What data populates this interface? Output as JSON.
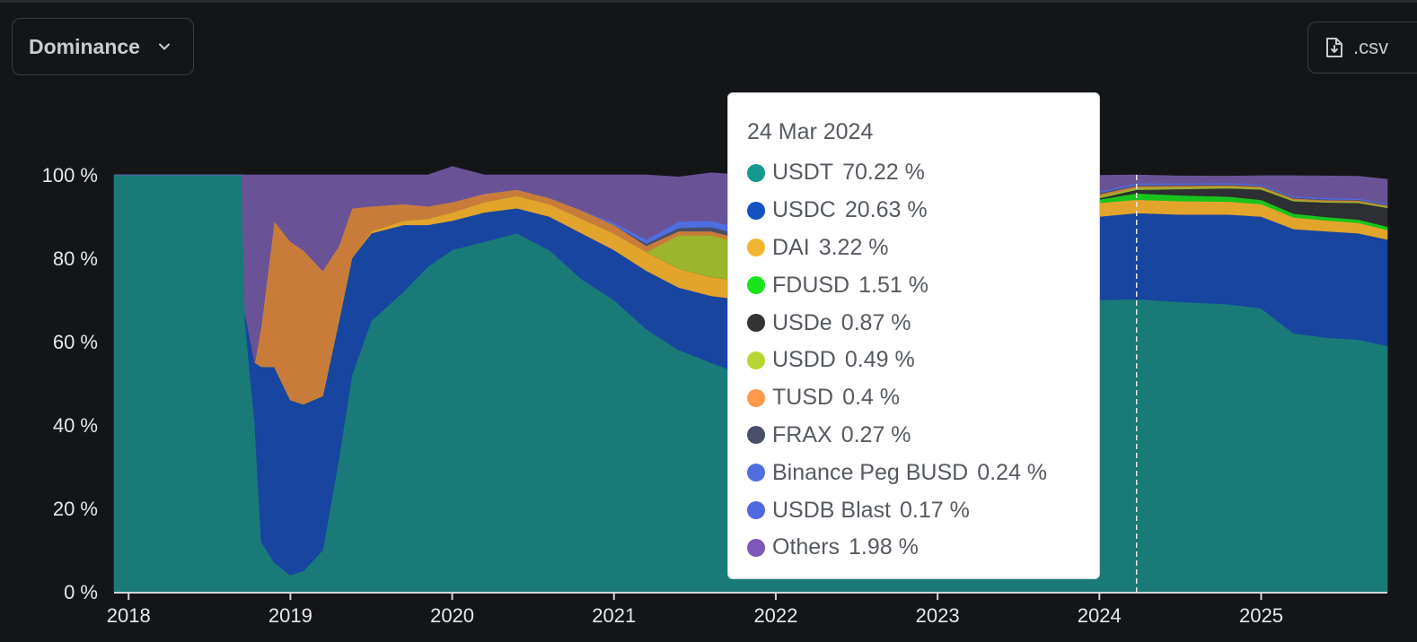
{
  "controls": {
    "metric_select": "Dominance",
    "download_label": ".csv"
  },
  "tooltip": {
    "date": "24 Mar 2024",
    "entries": [
      {
        "name": "USDT",
        "value": "70.22 %",
        "color": "#149a8e"
      },
      {
        "name": "USDC",
        "value": "20.63 %",
        "color": "#1151c0"
      },
      {
        "name": "DAI",
        "value": "3.22 %",
        "color": "#f2b531"
      },
      {
        "name": "FDUSD",
        "value": "1.51 %",
        "color": "#18e41c"
      },
      {
        "name": "USDe",
        "value": "0.87 %",
        "color": "#333333"
      },
      {
        "name": "USDD",
        "value": "0.49 %",
        "color": "#b8d631"
      },
      {
        "name": "TUSD",
        "value": "0.4 %",
        "color": "#ff9a4a"
      },
      {
        "name": "FRAX",
        "value": "0.27 %",
        "color": "#4a4e68"
      },
      {
        "name": "Binance Peg BUSD",
        "value": "0.24 %",
        "color": "#4f6ee0"
      },
      {
        "name": "USDB Blast",
        "value": "0.17 %",
        "color": "#5068e0"
      },
      {
        "name": "Others",
        "value": "1.98 %",
        "color": "#7e57b8"
      }
    ]
  },
  "chart_data": {
    "type": "area",
    "stacked": true,
    "y_unit": "%",
    "ylim": [
      0,
      100
    ],
    "y_ticks": [
      "0 %",
      "20 %",
      "40 %",
      "60 %",
      "80 %",
      "100 %"
    ],
    "x_ticks": [
      "2018",
      "2019",
      "2020",
      "2021",
      "2022",
      "2023",
      "2024",
      "2025"
    ],
    "xlim": [
      2017.91,
      2025.78
    ],
    "hover_x": 2024.23,
    "x": [
      2017.91,
      2018.7,
      2018.72,
      2018.78,
      2018.82,
      2018.9,
      2019.0,
      2019.08,
      2019.2,
      2019.3,
      2019.38,
      2019.5,
      2019.7,
      2019.85,
      2020.0,
      2020.2,
      2020.4,
      2020.6,
      2020.8,
      2021.0,
      2021.2,
      2021.4,
      2021.6,
      2021.8,
      2022.0,
      2022.2,
      2022.4,
      2022.6,
      2022.8,
      2023.0,
      2023.2,
      2023.4,
      2023.6,
      2023.8,
      2024.0,
      2024.23,
      2024.5,
      2024.8,
      2025.0,
      2025.2,
      2025.4,
      2025.6,
      2025.78
    ],
    "series": [
      {
        "name": "USDT",
        "color": "#1a7a78",
        "values": [
          100,
          100,
          65,
          40,
          12,
          7,
          4,
          5,
          10,
          32,
          52,
          65,
          72,
          78,
          82,
          84,
          86,
          82,
          75,
          70,
          63,
          58,
          55,
          52,
          50,
          52,
          56,
          60,
          62,
          64,
          66,
          67,
          68,
          69,
          70,
          70.2,
          69.5,
          69,
          68,
          62,
          61,
          60.5,
          59
        ]
      },
      {
        "name": "USDC",
        "color": "#1745a0",
        "values": [
          0,
          0,
          2,
          15,
          42,
          47,
          42,
          40,
          37,
          33,
          28,
          21,
          16,
          10,
          7,
          7,
          6,
          8,
          11,
          12,
          14,
          15,
          16,
          18,
          19,
          18,
          17,
          16,
          16,
          17,
          18,
          18.5,
          19,
          19.5,
          20,
          20.63,
          21,
          21.5,
          22,
          25,
          25.5,
          25.5,
          25.5
        ]
      },
      {
        "name": "DAI",
        "color": "#e3a42b",
        "values": [
          0,
          0,
          0,
          0,
          0,
          0,
          0,
          0,
          0,
          0,
          0,
          0.5,
          1,
          1.5,
          2,
          2.5,
          3,
          3,
          3.5,
          4,
          4.5,
          4.5,
          4.5,
          4.5,
          4.5,
          4.5,
          4.5,
          4.5,
          4,
          3.8,
          3.6,
          3.5,
          3.4,
          3.3,
          3.3,
          3.22,
          3.2,
          3.1,
          3,
          2.8,
          2.6,
          2.5,
          2.3
        ]
      },
      {
        "name": "FDUSD",
        "color": "#18c41c",
        "values": [
          0,
          0,
          0,
          0,
          0,
          0,
          0,
          0,
          0,
          0,
          0,
          0,
          0,
          0,
          0,
          0,
          0,
          0,
          0,
          0,
          0,
          0,
          0,
          0,
          0,
          0,
          0,
          0,
          0,
          0,
          0,
          0,
          0,
          0.3,
          0.8,
          1.51,
          1.4,
          1.2,
          1,
          0.9,
          0.8,
          0.8,
          0.8
        ]
      },
      {
        "name": "USDe",
        "color": "#2e2f33",
        "values": [
          0,
          0,
          0,
          0,
          0,
          0,
          0,
          0,
          0,
          0,
          0,
          0,
          0,
          0,
          0,
          0,
          0,
          0,
          0,
          0,
          0,
          0,
          0,
          0,
          0,
          0,
          0,
          0,
          0,
          0,
          0,
          0,
          0,
          0,
          0.3,
          0.87,
          1.5,
          2,
          2.5,
          3,
          3.5,
          4,
          4.5
        ]
      },
      {
        "name": "USDD",
        "color": "#9bb52c",
        "values": [
          0,
          0,
          0,
          0,
          0,
          0,
          0,
          0,
          0,
          0,
          0,
          0,
          0,
          0,
          0,
          0,
          0,
          0,
          0,
          0,
          0,
          8,
          10,
          9,
          7,
          5,
          3,
          2,
          1.5,
          1,
          0.8,
          0.7,
          0.6,
          0.5,
          0.5,
          0.49,
          0.45,
          0.4,
          0.4,
          0.35,
          0.3,
          0.3,
          0.3
        ]
      },
      {
        "name": "TUSD",
        "color": "#c97c3a",
        "values": [
          0,
          0,
          0,
          0,
          10,
          35,
          38,
          37,
          30,
          18,
          12,
          6,
          4,
          3,
          2.5,
          2,
          1.5,
          1.5,
          2,
          2,
          1.5,
          1,
          1,
          1,
          1,
          1.5,
          1.5,
          1.5,
          1.5,
          1.5,
          1.5,
          1.2,
          1,
          0.8,
          0.5,
          0.4,
          0.35,
          0.3,
          0.3,
          0.3,
          0.25,
          0.25,
          0.25
        ]
      },
      {
        "name": "FRAX",
        "color": "#4a4e68",
        "values": [
          0,
          0,
          0,
          0,
          0,
          0,
          0,
          0,
          0,
          0,
          0,
          0,
          0,
          0,
          0,
          0,
          0,
          0,
          0,
          0,
          0.5,
          0.8,
          1,
          1,
          1,
          1,
          0.9,
          0.8,
          0.7,
          0.6,
          0.5,
          0.4,
          0.35,
          0.3,
          0.3,
          0.27,
          0.25,
          0.25,
          0.2,
          0.2,
          0.2,
          0.2,
          0.2
        ]
      },
      {
        "name": "Binance Peg BUSD",
        "color": "#4f6ee0",
        "values": [
          0,
          0,
          0,
          0,
          0,
          0,
          0,
          0,
          0,
          0,
          0,
          0,
          0,
          0,
          0,
          0,
          0,
          0,
          0,
          0.5,
          1,
          1.5,
          1.5,
          1.5,
          1.5,
          1.2,
          1,
          0.8,
          0.6,
          0.5,
          0.4,
          0.35,
          0.3,
          0.3,
          0.25,
          0.24,
          0.2,
          0.2,
          0.2,
          0.2,
          0.2,
          0.2,
          0.2
        ]
      },
      {
        "name": "USDB Blast",
        "color": "#5068e0",
        "values": [
          0,
          0,
          0,
          0,
          0,
          0,
          0,
          0,
          0,
          0,
          0,
          0,
          0,
          0,
          0,
          0,
          0,
          0,
          0,
          0,
          0,
          0,
          0,
          0,
          0,
          0,
          0,
          0,
          0,
          0,
          0,
          0,
          0,
          0,
          0.1,
          0.17,
          0.15,
          0.1,
          0.1,
          0.1,
          0.1,
          0.1,
          0.1
        ]
      },
      {
        "name": "Others",
        "color": "#6a5296",
        "values": [
          0,
          0,
          33,
          45,
          36,
          11,
          16,
          18,
          23,
          17,
          8,
          7.5,
          7,
          7.5,
          8.5,
          4.5,
          3.5,
          5.5,
          8.5,
          11.5,
          15.5,
          10.7,
          11.5,
          13,
          16,
          16.8,
          16.1,
          13.4,
          13.7,
          11.6,
          9.2,
          8.35,
          7.85,
          6.0,
          3.85,
          1.98,
          1.75,
          1.65,
          2.1,
          4.95,
          5.3,
          5.3,
          5.8
        ]
      }
    ]
  }
}
